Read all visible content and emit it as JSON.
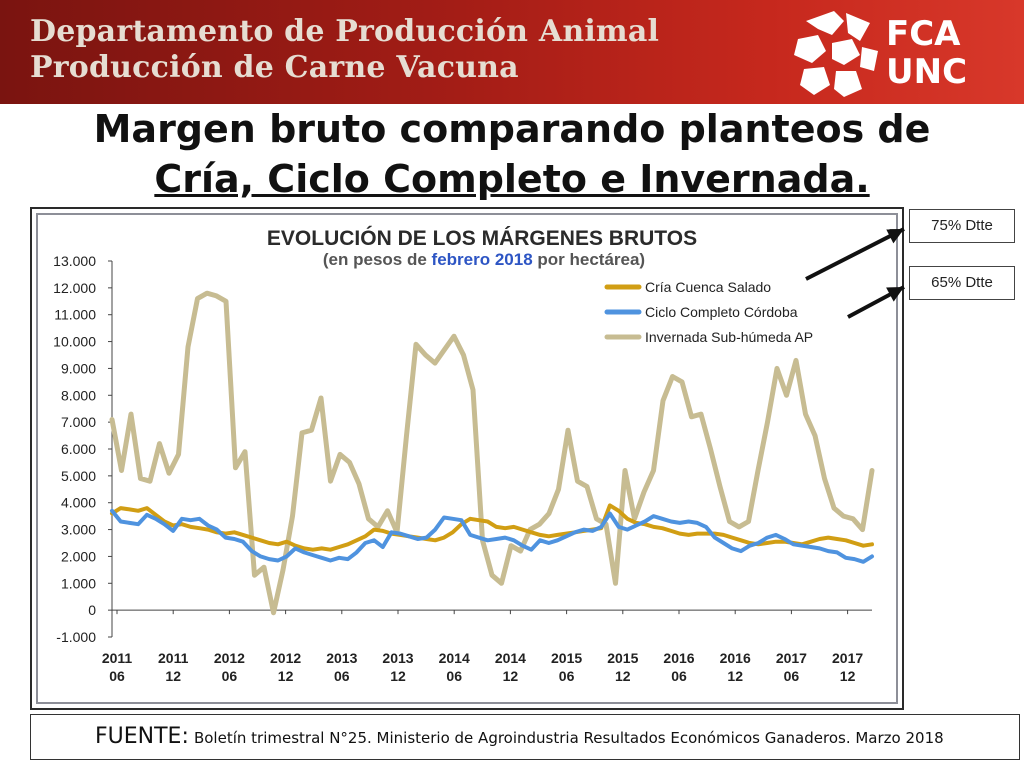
{
  "header": {
    "line1": "Departamento de Producción Animal",
    "line2": "Producción de Carne Vacuna",
    "logo_line1": "FCA",
    "logo_line2": "UNC"
  },
  "slide_title": {
    "line1": "Margen bruto comparando planteos de",
    "line2": "Cría, Ciclo Completo e Invernada."
  },
  "callouts": [
    "75% Dtte",
    "65% Dtte"
  ],
  "footer": {
    "label": "FUENTE:",
    "text": "Boletín trimestral N°25. Ministerio de Agroindustria Resultados Económicos Ganaderos.  Marzo 2018"
  },
  "colors": {
    "header_bg": "#a41d16",
    "cria": "#d19e14",
    "ciclo": "#4f93df",
    "invernada": "#c7bc92"
  },
  "chart_data": {
    "type": "line",
    "title": "EVOLUCIÓN DE LOS MÁRGENES BRUTOS",
    "subtitle_parts": [
      "(en pesos de ",
      "febrero 2018",
      " por hectárea)"
    ],
    "ylim": [
      -1000,
      13000
    ],
    "yticks": [
      -1000,
      0,
      1000,
      2000,
      3000,
      4000,
      5000,
      6000,
      7000,
      8000,
      9000,
      10000,
      11000,
      12000,
      13000
    ],
    "ytick_labels": [
      "-1.000",
      "0",
      "1.000",
      "2.000",
      "3.000",
      "4.000",
      "5.000",
      "6.000",
      "7.000",
      "8.000",
      "9.000",
      "10.000",
      "11.000",
      "12.000",
      "13.000"
    ],
    "xtick_labels": [
      [
        "2011",
        "06"
      ],
      [
        "2011",
        "12"
      ],
      [
        "2012",
        "06"
      ],
      [
        "2012",
        "12"
      ],
      [
        "2013",
        "06"
      ],
      [
        "2013",
        "12"
      ],
      [
        "2014",
        "06"
      ],
      [
        "2014",
        "12"
      ],
      [
        "2015",
        "06"
      ],
      [
        "2015",
        "12"
      ],
      [
        "2016",
        "06"
      ],
      [
        "2016",
        "12"
      ],
      [
        "2017",
        "06"
      ],
      [
        "2017",
        "12"
      ]
    ],
    "legend_position": "top-right",
    "grid": false,
    "series": [
      {
        "name": "Cría Cuenca Salado",
        "color": "#d19e14",
        "values": [
          3600,
          3800,
          3750,
          3700,
          3800,
          3550,
          3300,
          3150,
          3200,
          3100,
          3050,
          3000,
          2900,
          2850,
          2900,
          2800,
          2700,
          2600,
          2500,
          2450,
          2550,
          2400,
          2300,
          2250,
          2300,
          2250,
          2350,
          2450,
          2600,
          2750,
          3000,
          2950,
          2850,
          2800,
          2750,
          2700,
          2650,
          2600,
          2700,
          2900,
          3200,
          3400,
          3350,
          3300,
          3100,
          3050,
          3100,
          3000,
          2900,
          2800,
          2750,
          2800,
          2850,
          2900,
          2950,
          3000,
          3050,
          3900,
          3700,
          3400,
          3250,
          3200,
          3100,
          3050,
          2950,
          2850,
          2800,
          2850,
          2850,
          2850,
          2800,
          2700,
          2600,
          2500,
          2450,
          2500,
          2550,
          2550,
          2500,
          2450,
          2550,
          2650,
          2700,
          2650,
          2600,
          2500,
          2400,
          2450
        ]
      },
      {
        "name": "Ciclo Completo Córdoba",
        "color": "#4f93df",
        "values": [
          3700,
          3300,
          3250,
          3200,
          3550,
          3400,
          3200,
          2950,
          3400,
          3350,
          3400,
          3150,
          3000,
          2700,
          2650,
          2550,
          2200,
          2000,
          1900,
          1850,
          2000,
          2300,
          2150,
          2050,
          1950,
          1850,
          1950,
          1900,
          2150,
          2500,
          2600,
          2350,
          2900,
          2850,
          2750,
          2650,
          2700,
          3000,
          3450,
          3400,
          3350,
          2800,
          2700,
          2600,
          2650,
          2700,
          2600,
          2400,
          2250,
          2600,
          2500,
          2600,
          2750,
          2900,
          3000,
          2950,
          3100,
          3600,
          3100,
          3000,
          3150,
          3300,
          3500,
          3400,
          3300,
          3250,
          3300,
          3250,
          3100,
          2700,
          2500,
          2300,
          2200,
          2400,
          2500,
          2700,
          2800,
          2650,
          2450,
          2400,
          2350,
          2300,
          2200,
          2150,
          1950,
          1900,
          1800,
          2000
        ]
      },
      {
        "name": "Invernada Sub-húmeda AP",
        "color": "#c7bc92",
        "values": [
          7100,
          5200,
          7300,
          4900,
          4800,
          6200,
          5100,
          5800,
          9800,
          11600,
          11800,
          11700,
          11500,
          5300,
          5900,
          1300,
          1600,
          -100,
          1500,
          3500,
          6600,
          6700,
          7900,
          4800,
          5800,
          5500,
          4700,
          3400,
          3100,
          3700,
          2900,
          6500,
          9900,
          9500,
          9200,
          9700,
          10200,
          9500,
          8200,
          2600,
          1300,
          1000,
          2400,
          2200,
          3000,
          3200,
          3600,
          4500,
          6700,
          4800,
          4600,
          3400,
          3200,
          1000,
          5200,
          3400,
          4400,
          5200,
          7800,
          8700,
          8500,
          7200,
          7300,
          6000,
          4600,
          3300,
          3100,
          3300,
          5200,
          7000,
          9000,
          8000,
          9300,
          7300,
          6500,
          4900,
          3800,
          3500,
          3400,
          3000,
          5200
        ]
      }
    ]
  }
}
